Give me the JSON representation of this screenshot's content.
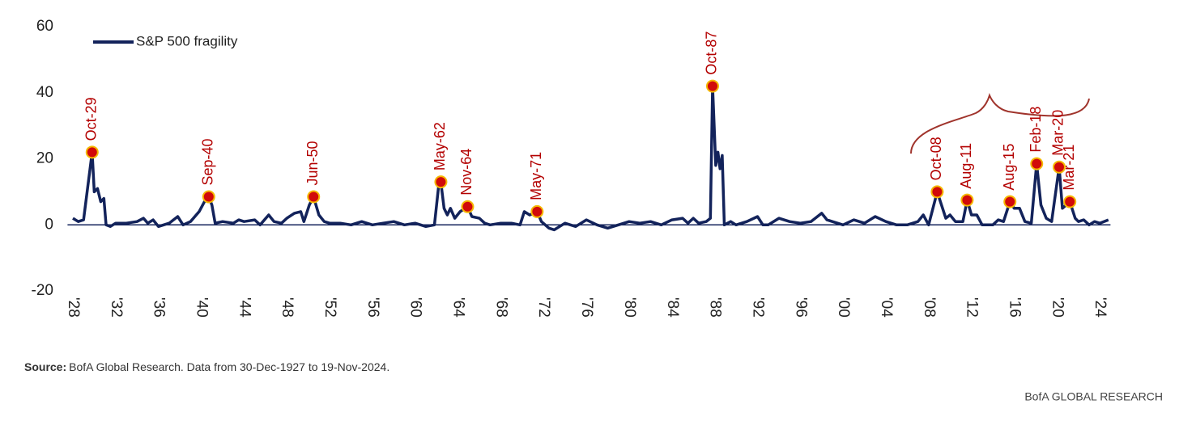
{
  "chart_data": {
    "type": "line",
    "x": [
      1928,
      1928.5,
      1929,
      1929.8,
      1930.0,
      1930.3,
      1930.6,
      1930.9,
      1931.1,
      1931.5,
      1932,
      1933,
      1934,
      1934.6,
      1935,
      1935.5,
      1936,
      1937,
      1937.8,
      1938.3,
      1939,
      1939.8,
      1940.3,
      1940.7,
      1941,
      1941.3,
      1942,
      1943,
      1943.5,
      1944,
      1945,
      1945.5,
      1946.3,
      1946.8,
      1947.5,
      1948,
      1948.7,
      1949.3,
      1949.6,
      1950.1,
      1950.5,
      1951,
      1951.5,
      1952,
      1953,
      1954,
      1955,
      1956,
      1957,
      1958,
      1959,
      1960,
      1961,
      1961.8,
      1962.2,
      1962.4,
      1962.7,
      1963,
      1963.3,
      1963.7,
      1964.2,
      1964.9,
      1965.3,
      1966,
      1966.5,
      1967,
      1968,
      1969,
      1969.8,
      1970.2,
      1970.7,
      1971.4,
      1971.8,
      1972.5,
      1973,
      1974,
      1975,
      1976,
      1977,
      1978,
      1979,
      1980,
      1981,
      1982,
      1983,
      1984,
      1985,
      1985.5,
      1986,
      1986.5,
      1987.2,
      1987.6,
      1987.8,
      1988.1,
      1988.3,
      1988.5,
      1988.7,
      1988.9,
      1989.5,
      1990,
      1991,
      1992,
      1992.5,
      1993,
      1994,
      1995,
      1996,
      1997,
      1998,
      1998.5,
      1999,
      2000,
      2001,
      2002,
      2003,
      2004,
      2005,
      2006,
      2007,
      2007.5,
      2008,
      2008.8,
      2009.2,
      2009.6,
      2010,
      2010.5,
      2011.2,
      2011.6,
      2012,
      2012.5,
      2013,
      2014,
      2014.5,
      2015,
      2015.6,
      2016,
      2016.5,
      2017,
      2017.6,
      2018.1,
      2018.5,
      2019,
      2019.5,
      2020.2,
      2020.5,
      2021.2,
      2021.7,
      2022,
      2022.5,
      2023,
      2023.5,
      2024,
      2024.8
    ],
    "series": [
      {
        "name": "S&P 500 fragility",
        "color": "#13235b",
        "values": [
          2,
          1,
          1.5,
          22,
          10,
          11,
          7,
          8,
          0,
          -0.5,
          0.5,
          0.5,
          1,
          2,
          0.5,
          1.5,
          -0.5,
          0.5,
          2.5,
          0,
          1,
          4,
          7,
          8.5,
          6,
          0.5,
          1,
          0.5,
          1.5,
          1,
          1.5,
          0,
          3,
          1,
          0.5,
          2,
          3.5,
          4,
          1,
          6,
          8.5,
          3,
          1,
          0.5,
          0.5,
          0,
          1,
          0,
          0.5,
          1,
          0,
          0.5,
          -0.5,
          0,
          12,
          13,
          5,
          3,
          5,
          2,
          4,
          5.5,
          2.5,
          2,
          0.5,
          0,
          0.5,
          0.5,
          0,
          4,
          3,
          4,
          1,
          -1,
          -1.5,
          0.5,
          -0.5,
          1.5,
          0,
          -1,
          0,
          1,
          0.5,
          1,
          0,
          1.5,
          2,
          0.5,
          2,
          0.5,
          1,
          2,
          42,
          18,
          22,
          17,
          21,
          0,
          1,
          0,
          1,
          2.5,
          0,
          0,
          2,
          1,
          0.5,
          1,
          3.5,
          1.5,
          1,
          0,
          1.5,
          0.5,
          2.5,
          1,
          0,
          0,
          1,
          3,
          0,
          10,
          6,
          2,
          3,
          1,
          1,
          7.5,
          3,
          3,
          0,
          0,
          1.5,
          1,
          7,
          5,
          5,
          1,
          0.5,
          18.5,
          6,
          2,
          1,
          17.5,
          5,
          7,
          2,
          1,
          1.5,
          0,
          1,
          0.5,
          1.5
        ]
      }
    ],
    "xlim": [
      1927.5,
      2025
    ],
    "ylim": [
      -20,
      60
    ],
    "yticks": [
      60,
      40,
      20,
      0,
      -20
    ],
    "xticks": [
      {
        "value": 1928,
        "label": "'28"
      },
      {
        "value": 1932,
        "label": "'32"
      },
      {
        "value": 1936,
        "label": "'36"
      },
      {
        "value": 1940,
        "label": "'40"
      },
      {
        "value": 1944,
        "label": "'44"
      },
      {
        "value": 1948,
        "label": "'48"
      },
      {
        "value": 1952,
        "label": "'52"
      },
      {
        "value": 1956,
        "label": "'56"
      },
      {
        "value": 1960,
        "label": "'60"
      },
      {
        "value": 1964,
        "label": "'64"
      },
      {
        "value": 1968,
        "label": "'68"
      },
      {
        "value": 1972,
        "label": "'72"
      },
      {
        "value": 1976,
        "label": "'76"
      },
      {
        "value": 1980,
        "label": "'80"
      },
      {
        "value": 1984,
        "label": "'84"
      },
      {
        "value": 1988,
        "label": "'88"
      },
      {
        "value": 1992,
        "label": "'92"
      },
      {
        "value": 1996,
        "label": "'96"
      },
      {
        "value": 2000,
        "label": "'00"
      },
      {
        "value": 2004,
        "label": "'04"
      },
      {
        "value": 2008,
        "label": "'08"
      },
      {
        "value": 2012,
        "label": "'12"
      },
      {
        "value": 2016,
        "label": "'16"
      },
      {
        "value": 2020,
        "label": "'20"
      },
      {
        "value": 2024,
        "label": "'24"
      }
    ],
    "annotations": [
      {
        "label": "Oct-29",
        "x": 1929.8,
        "y": 22
      },
      {
        "label": "Sep-40",
        "x": 1940.7,
        "y": 8.5
      },
      {
        "label": "Jun-50",
        "x": 1950.5,
        "y": 8.5
      },
      {
        "label": "May-62",
        "x": 1962.4,
        "y": 13
      },
      {
        "label": "Nov-64",
        "x": 1964.9,
        "y": 5.5
      },
      {
        "label": "May-71",
        "x": 1971.4,
        "y": 4
      },
      {
        "label": "Oct-87",
        "x": 1987.8,
        "y": 42
      },
      {
        "label": "Oct-08",
        "x": 2008.8,
        "y": 10
      },
      {
        "label": "Aug-11",
        "x": 2011.6,
        "y": 7.5
      },
      {
        "label": "Aug-15",
        "x": 2015.6,
        "y": 7
      },
      {
        "label": "Feb-18",
        "x": 2018.1,
        "y": 18.5
      },
      {
        "label": "Mar-20",
        "x": 2020.2,
        "y": 17.5
      },
      {
        "label": "Mar-21",
        "x": 2021.2,
        "y": 7
      }
    ],
    "marker_color": "#d10a0a",
    "annotation_color": "#b30000",
    "source_label": "Source:",
    "source": "BofA Global Research. Data from 30-Dec-1927 to 19-Nov-2024.",
    "footer": "BofA GLOBAL RESEARCH"
  }
}
